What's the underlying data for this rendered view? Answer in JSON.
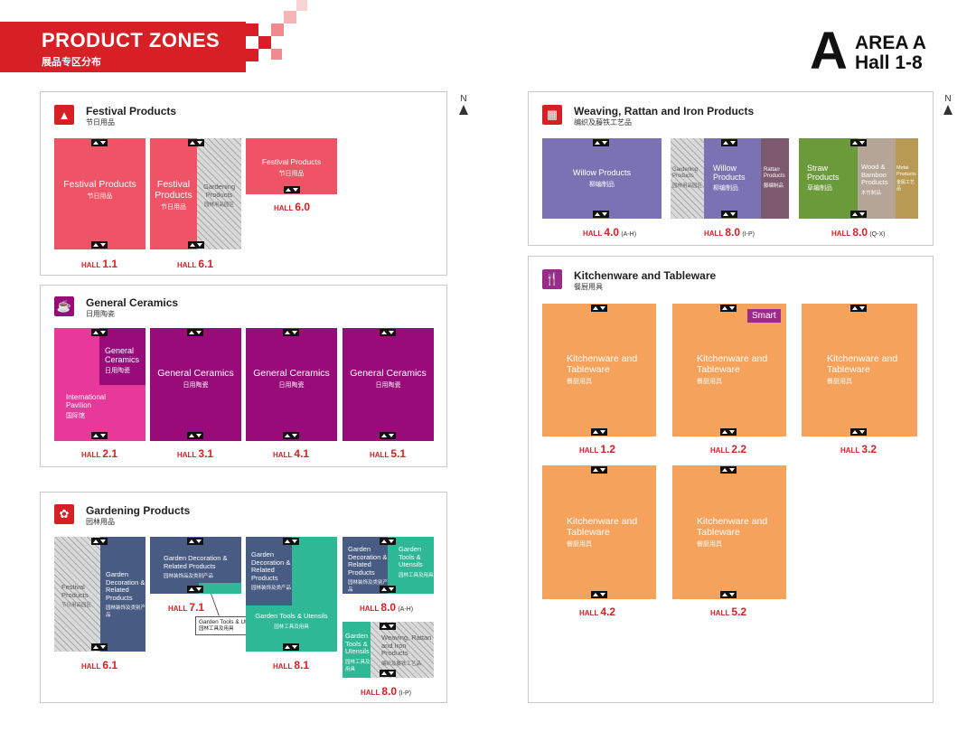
{
  "header": {
    "title": "PRODUCT ZONES",
    "subtitle": "展品专区分布",
    "area_letter": "A",
    "area_line1": "AREA A",
    "area_line2": "Hall 1-8",
    "brand_color": "#d71f26"
  },
  "north_label": "N",
  "hall_prefix": "HALL",
  "sections": {
    "festival": {
      "title": "Festival Products",
      "subtitle": "节日用品",
      "icon": "christmas-tree-icon",
      "zones": {
        "h11": {
          "en": "Festival Products",
          "cn": "节日用品"
        },
        "h61a": {
          "en": "Festival Products",
          "cn": "节日用品"
        },
        "h61b": {
          "en": "Gardening Products",
          "cn": "园林用品园区"
        },
        "h60": {
          "en": "Festival Products",
          "cn": "节日用品"
        }
      },
      "halls": {
        "h11": "1.1",
        "h61": "6.1",
        "h60": "6.0"
      }
    },
    "ceramics": {
      "title": "General Ceramics",
      "subtitle": "日用陶瓷",
      "icon": "cup-icon",
      "zones": {
        "h21a": {
          "en": "General Ceramics",
          "cn": "日用陶瓷"
        },
        "h21b": {
          "en": "International Pavilion",
          "cn": "国际馆"
        },
        "h31": {
          "en": "General Ceramics",
          "cn": "日用陶瓷"
        },
        "h41": {
          "en": "General Ceramics",
          "cn": "日用陶瓷"
        },
        "h51": {
          "en": "General Ceramics",
          "cn": "日用陶瓷"
        }
      },
      "halls": {
        "h21": "2.1",
        "h31": "3.1",
        "h41": "4.1",
        "h51": "5.1"
      }
    },
    "gardening": {
      "title": "Gardening Products",
      "subtitle": "园林用品",
      "icon": "plant-pot-icon",
      "zones": {
        "h61a": {
          "en": "Festival Products",
          "cn": "节日用品园区"
        },
        "h61b": {
          "en": "Garden Decoration & Related Products",
          "cn": "园林装饰及类别产品"
        },
        "h71a": {
          "en": "Garden Decoration & Related Products",
          "cn": "园林装饰品及类别产品"
        },
        "h71b": {
          "en": "Garden Tools & Utensils",
          "cn": "园林工具及用具"
        },
        "h81a": {
          "en": "Garden Decoration & Related Products",
          "cn": "园林装饰及类产品"
        },
        "h81b": {
          "en": "Garden Tools & Utensils",
          "cn": "园林工具及用具"
        },
        "h80a": {
          "en": "Garden Decoration & Related Products",
          "cn": "园林装饰及类别产品"
        },
        "h80b": {
          "en": "Garden Tools & Utensils",
          "cn": "园林工具及用具"
        },
        "h80c": {
          "en": "Garden Tools & Utensils",
          "cn": "园林工具及用具"
        },
        "h80d": {
          "en": "Weaving, Rattan and Iron Products",
          "cn": "编织及藤铁工艺品"
        }
      },
      "halls": {
        "h61": "6.1",
        "h71": "7.1",
        "h81": "8.1",
        "h80ah": "8.0",
        "h80ah_range": "(A-H)",
        "h80ip": "8.0",
        "h80ip_range": "(I-P)"
      }
    },
    "weaving": {
      "title": "Weaving, Rattan and Iron Products",
      "subtitle": "编织及藤铁工艺品",
      "icon": "basket-icon",
      "zones": {
        "h40": {
          "en": "Willow Products",
          "cn": "柳编制品"
        },
        "h80ipa": {
          "en": "Gardening Products",
          "cn": "园林用品园区"
        },
        "h80ipb": {
          "en": "Willow Products",
          "cn": "柳编制品"
        },
        "h80ipc": {
          "en": "Rattan Products",
          "cn": "藤编制品"
        },
        "h80qxa": {
          "en": "Straw Products",
          "cn": "草编制品"
        },
        "h80qxb": {
          "en": "Wood & Bamboo Products",
          "cn": "木竹制品"
        },
        "h80qxc": {
          "en": "Metal Products",
          "cn": "金属工艺品"
        }
      },
      "halls": {
        "h40": "4.0",
        "h40_range": "(A-H)",
        "h80ip": "8.0",
        "h80ip_range": "(I-P)",
        "h80qx": "8.0",
        "h80qx_range": "(Q-X)"
      }
    },
    "kitchen": {
      "title": "Kitchenware and Tableware",
      "subtitle": "餐厨用具",
      "icon": "fork-knife-icon",
      "zone": {
        "en": "Kitchenware and Tableware",
        "cn": "餐厨用具"
      },
      "smart": "Smart",
      "halls": {
        "h12": "1.2",
        "h22": "2.2",
        "h32": "3.2",
        "h42": "4.2",
        "h52": "5.2"
      }
    }
  },
  "colors": {
    "festival": "#ef5466",
    "ceramics": "#9a0b7a",
    "intl": "#e8399a",
    "garden_blue": "#485b83",
    "garden_green": "#2fb895",
    "weaving_purple": "#7b72b4",
    "rattan": "#7d5a70",
    "straw": "#6b9a3b",
    "wood": "#b5a596",
    "metal": "#b89a55",
    "kitchen": "#f5a25c"
  }
}
